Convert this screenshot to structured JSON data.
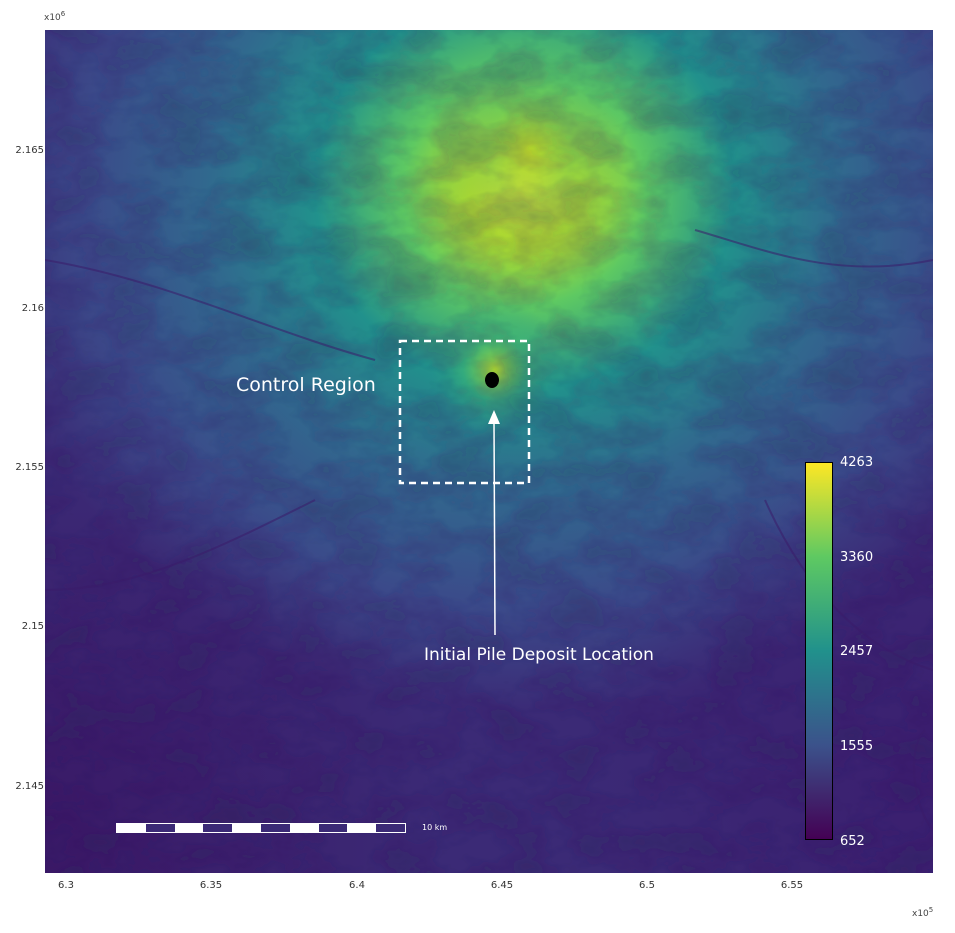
{
  "axes": {
    "y_exponent_base": "x10",
    "y_exponent_power": "6",
    "x_exponent_base": "x10",
    "x_exponent_power": "5",
    "y_ticks": [
      "2.165",
      "2.16",
      "2.155",
      "2.15",
      "2.145"
    ],
    "x_ticks": [
      "6.3",
      "6.35",
      "6.4",
      "6.45",
      "6.5",
      "6.55"
    ]
  },
  "annotations": {
    "control_region": "Control Region",
    "deposit_location": "Initial Pile Deposit Location"
  },
  "colorbar": {
    "ticks": [
      "4263",
      "3360",
      "2457",
      "1555",
      "652"
    ],
    "colors": [
      "#fde725",
      "#5ec962",
      "#21918c",
      "#3b528b",
      "#440154"
    ]
  },
  "scalebar": {
    "label": "10 km"
  },
  "colors": {
    "terrain_low": "#3b1c6e",
    "terrain_mid": "#27808e",
    "terrain_high": "#f6e620",
    "annotation": "#ffffff",
    "marker": "#000000"
  }
}
